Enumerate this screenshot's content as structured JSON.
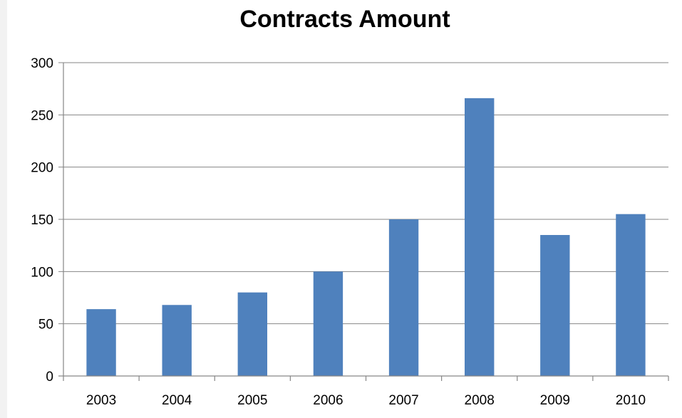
{
  "chart_data": {
    "type": "bar",
    "title": "Contracts Amount",
    "xlabel": "",
    "ylabel": "",
    "categories": [
      "2003",
      "2004",
      "2005",
      "2006",
      "2007",
      "2008",
      "2009",
      "2010"
    ],
    "values": [
      64,
      68,
      80,
      100,
      150,
      266,
      135,
      155
    ],
    "ylim": [
      0,
      300
    ],
    "yticks": [
      0,
      50,
      100,
      150,
      200,
      250,
      300
    ],
    "grid": true,
    "legend": "none",
    "bar_color": "#4f81bd"
  }
}
